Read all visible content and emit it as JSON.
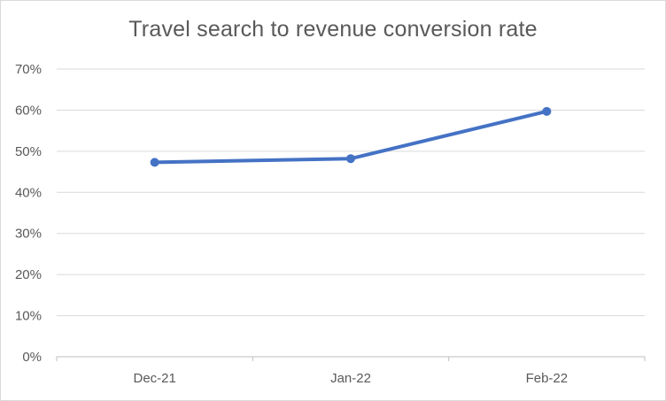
{
  "chart_data": {
    "type": "line",
    "title": "Travel search to revenue conversion rate",
    "xlabel": "",
    "ylabel": "",
    "categories": [
      "Dec-21",
      "Jan-22",
      "Feb-22"
    ],
    "series": [
      {
        "values": [
          47.3,
          48.2,
          59.7
        ]
      }
    ],
    "ylim": [
      0,
      70
    ],
    "yticks": [
      "0%",
      "10%",
      "20%",
      "30%",
      "40%",
      "50%",
      "60%",
      "70%"
    ],
    "grid": "horizontal",
    "legend": "none",
    "colors": {
      "line": "#4472c4",
      "grid": "#d9d9d9",
      "axis": "#bfbfbf",
      "text": "#595959"
    }
  }
}
